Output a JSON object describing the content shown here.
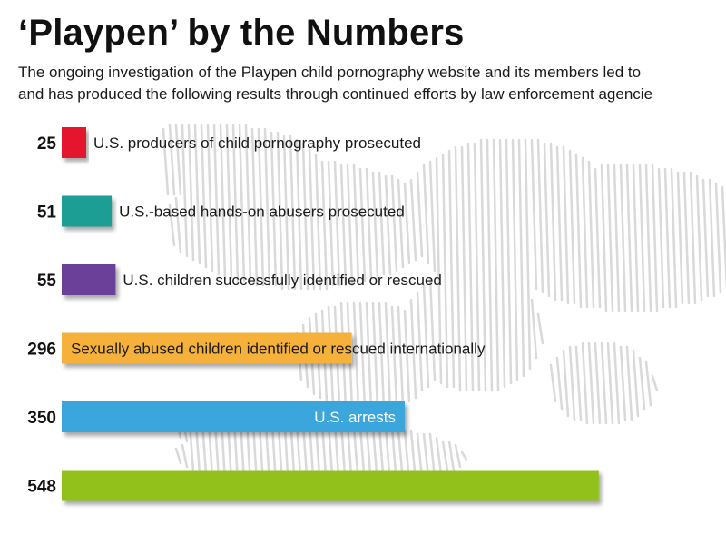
{
  "title": "‘Playpen’ by the Numbers",
  "subtitle_line1": "The ongoing investigation of the Playpen child pornography website and its members led to",
  "subtitle_line2": "and has produced the following results through continued efforts by law enforcement agencie",
  "chart_data": {
    "type": "bar",
    "orientation": "horizontal",
    "title": "‘Playpen’ by the Numbers",
    "categories": [
      "U.S. producers of child pornography prosecuted",
      "U.S.-based hands-on abusers prosecuted",
      "U.S. children successfully identified or rescued",
      "Sexually abused children identified or rescued internationally",
      "U.S. arrests",
      ""
    ],
    "values": [
      25,
      51,
      55,
      296,
      350,
      548
    ],
    "colors": [
      "#e3192d",
      "#1a9e94",
      "#6b3f98",
      "#f6b13a",
      "#3aa6dc",
      "#92c11d"
    ],
    "label_position": [
      "outside",
      "outside",
      "outside",
      "inside",
      "inside",
      "inside"
    ],
    "grid": false,
    "legend": "none"
  }
}
